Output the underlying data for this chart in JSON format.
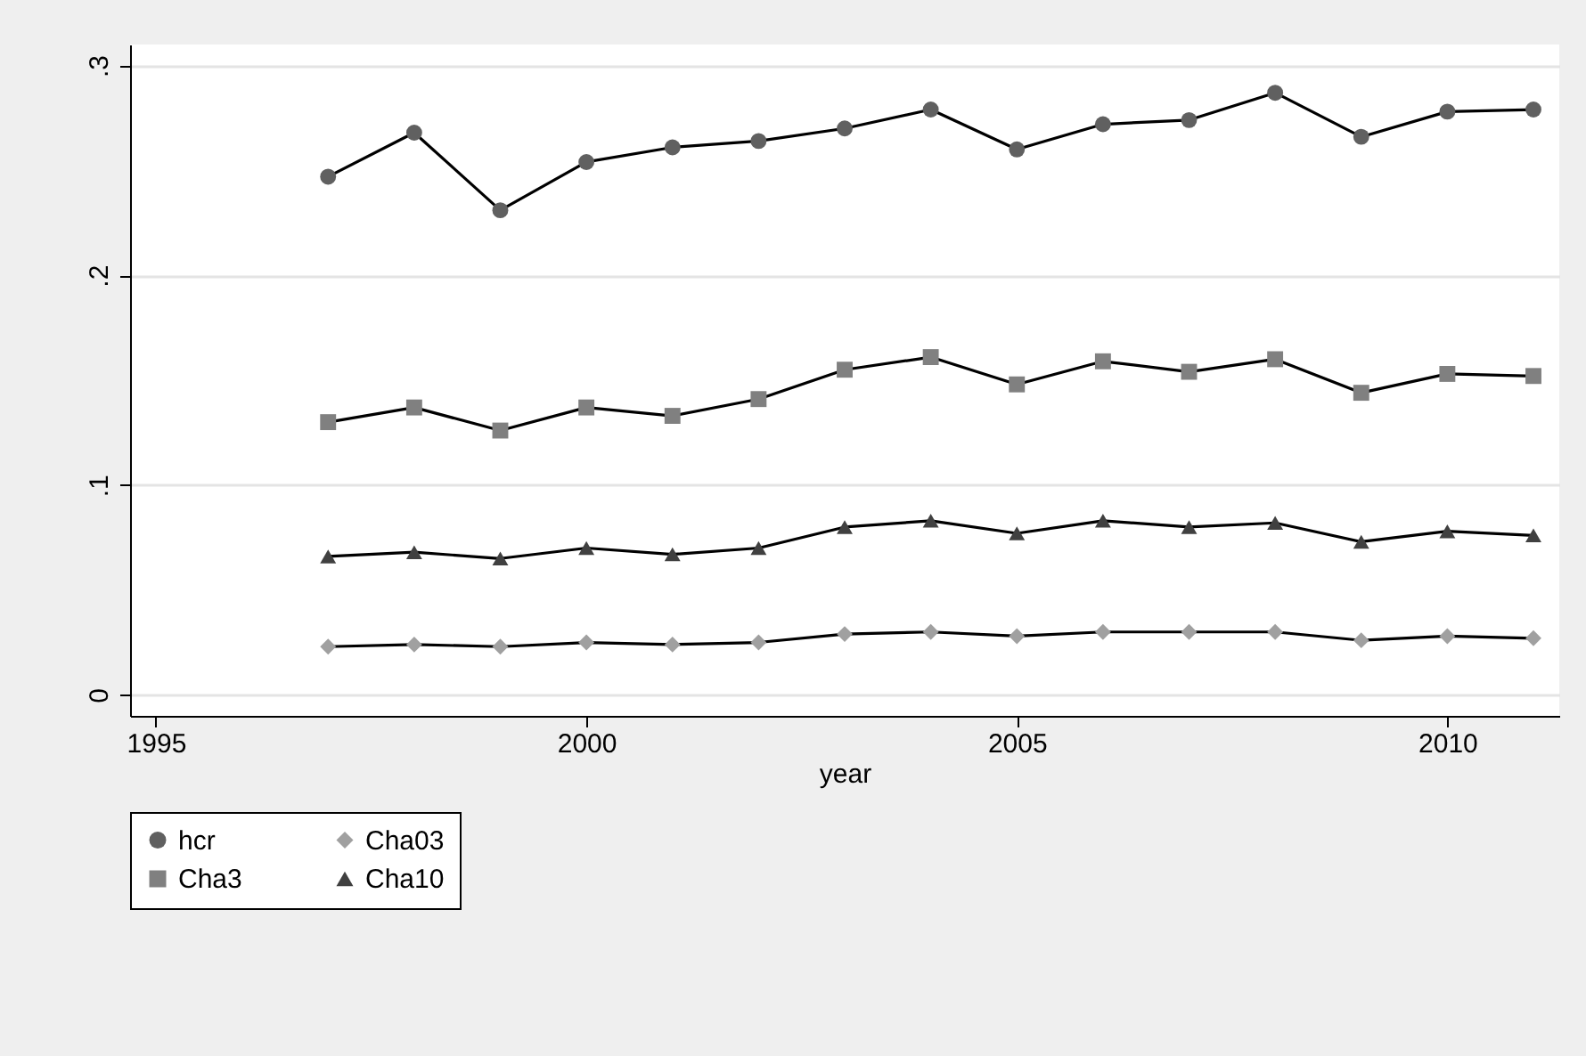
{
  "chart_data": {
    "type": "line",
    "xlabel": "year",
    "x": [
      1997,
      1998,
      1999,
      2000,
      2001,
      2002,
      2003,
      2004,
      2005,
      2006,
      2007,
      2008,
      2009,
      2010,
      2011
    ],
    "xlim": [
      1994.7,
      2011.3
    ],
    "xticks": [
      1995,
      2000,
      2005,
      2010
    ],
    "ylim": [
      -0.01,
      0.31
    ],
    "yticks": [
      {
        "value": 0,
        "label": "0"
      },
      {
        "value": 0.1,
        "label": ".1"
      },
      {
        "value": 0.2,
        "label": ".2"
      },
      {
        "value": 0.3,
        "label": ".3"
      }
    ],
    "grid": "y",
    "legend": "bottom",
    "line_style": "solid",
    "series": [
      {
        "name": "hcr",
        "color": "#606060",
        "marker": "circle",
        "values": [
          0.247,
          0.268,
          0.231,
          0.254,
          0.261,
          0.264,
          0.27,
          0.279,
          0.26,
          0.272,
          0.274,
          0.287,
          0.266,
          0.278,
          0.279
        ]
      },
      {
        "name": "Cha03",
        "color": "#a0a0a0",
        "marker": "diamond",
        "values": [
          0.023,
          0.024,
          0.023,
          0.025,
          0.024,
          0.025,
          0.029,
          0.03,
          0.028,
          0.03,
          0.03,
          0.03,
          0.026,
          0.028,
          0.027
        ]
      },
      {
        "name": "Cha3",
        "color": "#808080",
        "marker": "square",
        "values": [
          0.13,
          0.137,
          0.126,
          0.137,
          0.133,
          0.141,
          0.155,
          0.161,
          0.148,
          0.159,
          0.154,
          0.16,
          0.144,
          0.153,
          0.152
        ]
      },
      {
        "name": "Cha10",
        "color": "#404040",
        "marker": "triangle",
        "values": [
          0.066,
          0.068,
          0.065,
          0.07,
          0.067,
          0.07,
          0.08,
          0.083,
          0.077,
          0.083,
          0.08,
          0.082,
          0.073,
          0.078,
          0.076
        ]
      }
    ]
  }
}
